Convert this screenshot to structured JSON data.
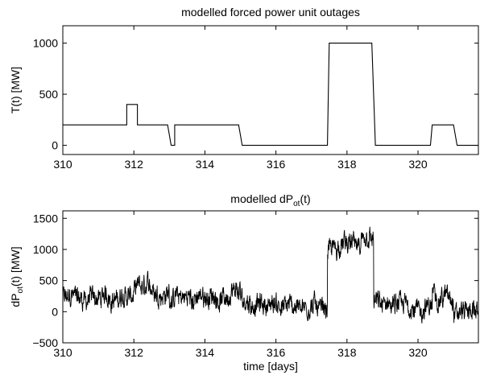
{
  "chart_data": [
    {
      "type": "line",
      "title": "modelled forced power unit outages",
      "xlabel": "",
      "ylabel": "T(t) [MW]",
      "xlim": [
        310,
        321.7
      ],
      "ylim": [
        -90,
        1170
      ],
      "xticks": [
        310,
        312,
        314,
        316,
        318,
        320
      ],
      "yticks": [
        0,
        500,
        1000
      ],
      "grid": false,
      "series": [
        {
          "x": [
            310,
            311.8,
            311.8,
            312.1,
            312.1,
            312.95,
            313.05,
            313.15,
            313.15,
            314.95,
            315.05,
            317.45,
            317.5,
            318.7,
            318.8,
            320.35,
            320.4,
            321.0,
            321.1,
            321.7
          ],
          "y": [
            200,
            200,
            400,
            400,
            200,
            200,
            0,
            0,
            200,
            200,
            0,
            0,
            1000,
            1000,
            0,
            0,
            200,
            200,
            0,
            0
          ]
        }
      ]
    },
    {
      "type": "line",
      "title_main": "modelled dP",
      "title_sub": "ot",
      "title_tail": "(t)",
      "xlabel": "time [days]",
      "ylabel_main": "dP",
      "ylabel_sub": "ot",
      "ylabel_tail": "(t) [MW]",
      "xlim": [
        310,
        321.7
      ],
      "ylim": [
        -500,
        1620
      ],
      "xticks": [
        310,
        312,
        314,
        316,
        318,
        320
      ],
      "yticks": [
        -500,
        0,
        500,
        1000,
        1500
      ],
      "grid": false,
      "noise_level_segments": [
        {
          "from": 310,
          "to": 312.0,
          "mean": 220
        },
        {
          "from": 312.0,
          "to": 313.0,
          "mean": 320
        },
        {
          "from": 313.0,
          "to": 315.0,
          "mean": 230
        },
        {
          "from": 315.0,
          "to": 317.45,
          "mean": 110
        },
        {
          "from": 317.45,
          "to": 318.75,
          "mean": 1050
        },
        {
          "from": 318.75,
          "to": 320.4,
          "mean": 60
        },
        {
          "from": 320.4,
          "to": 321.0,
          "mean": 280
        },
        {
          "from": 321.0,
          "to": 321.7,
          "mean": 60
        }
      ]
    }
  ]
}
